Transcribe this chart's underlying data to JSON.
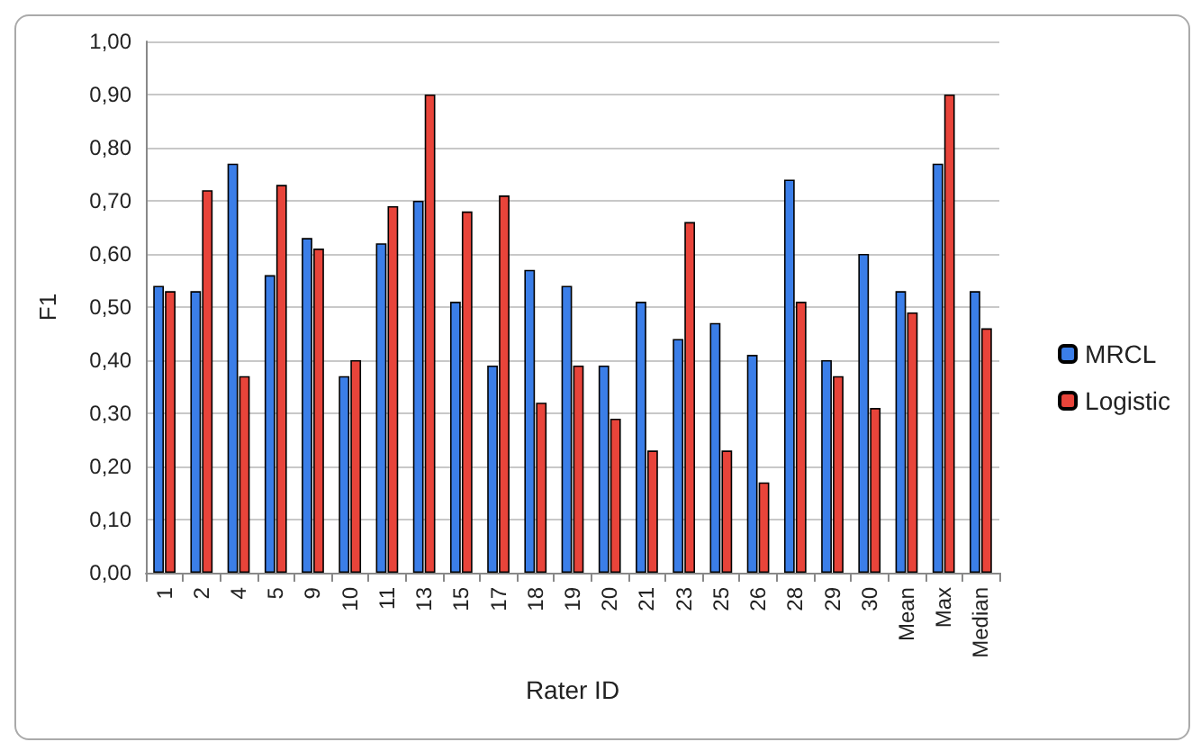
{
  "chart_data": {
    "type": "bar",
    "xlabel": "Rater ID",
    "ylabel": "F1",
    "categories": [
      "1",
      "2",
      "4",
      "5",
      "9",
      "10",
      "11",
      "13",
      "15",
      "17",
      "18",
      "19",
      "20",
      "21",
      "23",
      "25",
      "26",
      "28",
      "29",
      "30",
      "Mean",
      "Max",
      "Median"
    ],
    "series": [
      {
        "name": "MRCL",
        "color": "#3b7ee8",
        "values": [
          0.54,
          0.53,
          0.77,
          0.56,
          0.63,
          0.37,
          0.62,
          0.7,
          0.51,
          0.39,
          0.57,
          0.54,
          0.39,
          0.51,
          0.44,
          0.47,
          0.41,
          0.74,
          0.4,
          0.6,
          0.53,
          0.77,
          0.53
        ]
      },
      {
        "name": "Logistic",
        "color": "#e8443a",
        "values": [
          0.53,
          0.72,
          0.37,
          0.73,
          0.61,
          0.4,
          0.69,
          0.9,
          0.68,
          0.71,
          0.32,
          0.39,
          0.29,
          0.23,
          0.66,
          0.23,
          0.17,
          0.51,
          0.37,
          0.31,
          0.49,
          0.9,
          0.46
        ]
      }
    ],
    "ylim": [
      0,
      1
    ],
    "yticks": [
      {
        "value": 0,
        "label": "0,00"
      },
      {
        "value": 0.1,
        "label": "0,10"
      },
      {
        "value": 0.2,
        "label": "0,20"
      },
      {
        "value": 0.3,
        "label": "0,30"
      },
      {
        "value": 0.4,
        "label": "0,40"
      },
      {
        "value": 0.5,
        "label": "0,50"
      },
      {
        "value": 0.6,
        "label": "0,60"
      },
      {
        "value": 0.7,
        "label": "0,70"
      },
      {
        "value": 0.8,
        "label": "0,80"
      },
      {
        "value": 0.9,
        "label": "0,90"
      },
      {
        "value": 1,
        "label": "1,00"
      }
    ],
    "grid": "y",
    "legend": "right"
  }
}
